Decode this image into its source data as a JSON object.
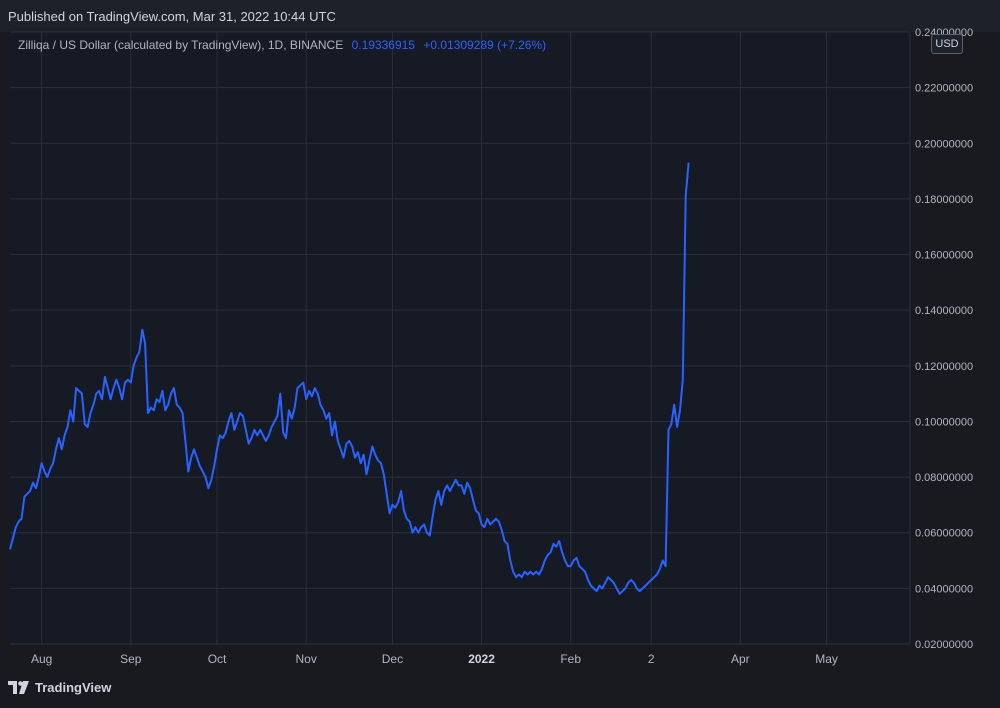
{
  "header": {
    "published": "Published on TradingView.com, Mar 31, 2022 10:44 UTC"
  },
  "legend": {
    "symbol": "Zilliqa / US Dollar (calculated by TradingView), 1D, BINANCE",
    "price": "0.19336915",
    "change": "+0.01309289 (+7.26%)"
  },
  "currency": "USD",
  "footer": {
    "brand": "TradingView"
  },
  "colors": {
    "line": "#2962ff",
    "background": "#161a25",
    "grid": "#2a2e39",
    "text": "#b2b5be"
  },
  "chart_data": {
    "type": "line",
    "title": "Zilliqa / US Dollar (calculated by TradingView), 1D, BINANCE",
    "xlabel": "",
    "ylabel": "",
    "ylim": [
      0.02,
      0.24
    ],
    "xlim": [
      "2021-07-21",
      "2022-05-30"
    ],
    "grid": true,
    "legend": "top-left",
    "y_ticks": [
      "0.24000000",
      "0.22000000",
      "0.20000000",
      "0.18000000",
      "0.16000000",
      "0.14000000",
      "0.12000000",
      "0.10000000",
      "0.08000000",
      "0.06000000",
      "0.04000000",
      "0.02000000"
    ],
    "x_ticks": [
      "Aug",
      "Sep",
      "Oct",
      "Nov",
      "Dec",
      "2022",
      "Feb",
      "2",
      "Apr",
      "May"
    ],
    "x_tick_dates": [
      "2021-08-01",
      "2021-09-01",
      "2021-10-01",
      "2021-11-01",
      "2021-12-01",
      "2022-01-01",
      "2022-02-01",
      "2022-03-01",
      "2022-04-01",
      "2022-05-01"
    ],
    "series": [
      {
        "values": [
          [
            "2021-07-21",
            0.054
          ],
          [
            "2021-07-23",
            0.062
          ],
          [
            "2021-07-24",
            0.064
          ],
          [
            "2021-07-25",
            0.065
          ],
          [
            "2021-07-26",
            0.073
          ],
          [
            "2021-07-27",
            0.074
          ],
          [
            "2021-07-28",
            0.075
          ],
          [
            "2021-07-29",
            0.078
          ],
          [
            "2021-07-30",
            0.076
          ],
          [
            "2021-07-31",
            0.08
          ],
          [
            "2021-08-01",
            0.085
          ],
          [
            "2021-08-02",
            0.082
          ],
          [
            "2021-08-03",
            0.08
          ],
          [
            "2021-08-04",
            0.083
          ],
          [
            "2021-08-05",
            0.085
          ],
          [
            "2021-08-06",
            0.09
          ],
          [
            "2021-08-07",
            0.094
          ],
          [
            "2021-08-08",
            0.09
          ],
          [
            "2021-08-09",
            0.095
          ],
          [
            "2021-08-10",
            0.098
          ],
          [
            "2021-08-11",
            0.104
          ],
          [
            "2021-08-12",
            0.1
          ],
          [
            "2021-08-13",
            0.112
          ],
          [
            "2021-08-14",
            0.111
          ],
          [
            "2021-08-15",
            0.11
          ],
          [
            "2021-08-16",
            0.099
          ],
          [
            "2021-08-17",
            0.098
          ],
          [
            "2021-08-18",
            0.103
          ],
          [
            "2021-08-19",
            0.106
          ],
          [
            "2021-08-20",
            0.11
          ],
          [
            "2021-08-21",
            0.111
          ],
          [
            "2021-08-22",
            0.108
          ],
          [
            "2021-08-23",
            0.116
          ],
          [
            "2021-08-24",
            0.112
          ],
          [
            "2021-08-25",
            0.108
          ],
          [
            "2021-08-26",
            0.112
          ],
          [
            "2021-08-27",
            0.115
          ],
          [
            "2021-08-28",
            0.112
          ],
          [
            "2021-08-29",
            0.108
          ],
          [
            "2021-08-30",
            0.114
          ],
          [
            "2021-08-31",
            0.115
          ],
          [
            "2021-09-01",
            0.114
          ],
          [
            "2021-09-02",
            0.12
          ],
          [
            "2021-09-03",
            0.123
          ],
          [
            "2021-09-04",
            0.125
          ],
          [
            "2021-09-05",
            0.133
          ],
          [
            "2021-09-06",
            0.128
          ],
          [
            "2021-09-07",
            0.103
          ],
          [
            "2021-09-08",
            0.105
          ],
          [
            "2021-09-09",
            0.104
          ],
          [
            "2021-09-10",
            0.108
          ],
          [
            "2021-09-11",
            0.107
          ],
          [
            "2021-09-12",
            0.111
          ],
          [
            "2021-09-13",
            0.104
          ],
          [
            "2021-09-14",
            0.106
          ],
          [
            "2021-09-15",
            0.11
          ],
          [
            "2021-09-16",
            0.112
          ],
          [
            "2021-09-17",
            0.106
          ],
          [
            "2021-09-18",
            0.105
          ],
          [
            "2021-09-19",
            0.103
          ],
          [
            "2021-09-20",
            0.093
          ],
          [
            "2021-09-21",
            0.082
          ],
          [
            "2021-09-22",
            0.087
          ],
          [
            "2021-09-23",
            0.09
          ],
          [
            "2021-09-24",
            0.087
          ],
          [
            "2021-09-25",
            0.084
          ],
          [
            "2021-09-26",
            0.082
          ],
          [
            "2021-09-27",
            0.08
          ],
          [
            "2021-09-28",
            0.076
          ],
          [
            "2021-09-29",
            0.079
          ],
          [
            "2021-09-30",
            0.084
          ],
          [
            "2021-10-01",
            0.09
          ],
          [
            "2021-10-02",
            0.095
          ],
          [
            "2021-10-03",
            0.094
          ],
          [
            "2021-10-04",
            0.096
          ],
          [
            "2021-10-05",
            0.1
          ],
          [
            "2021-10-06",
            0.103
          ],
          [
            "2021-10-07",
            0.097
          ],
          [
            "2021-10-08",
            0.1
          ],
          [
            "2021-10-09",
            0.103
          ],
          [
            "2021-10-10",
            0.102
          ],
          [
            "2021-10-11",
            0.097
          ],
          [
            "2021-10-12",
            0.092
          ],
          [
            "2021-10-13",
            0.094
          ],
          [
            "2021-10-14",
            0.097
          ],
          [
            "2021-10-15",
            0.095
          ],
          [
            "2021-10-16",
            0.097
          ],
          [
            "2021-10-17",
            0.095
          ],
          [
            "2021-10-18",
            0.093
          ],
          [
            "2021-10-19",
            0.095
          ],
          [
            "2021-10-20",
            0.098
          ],
          [
            "2021-10-21",
            0.1
          ],
          [
            "2021-10-22",
            0.102
          ],
          [
            "2021-10-23",
            0.11
          ],
          [
            "2021-10-24",
            0.096
          ],
          [
            "2021-10-25",
            0.094
          ],
          [
            "2021-10-26",
            0.104
          ],
          [
            "2021-10-27",
            0.101
          ],
          [
            "2021-10-28",
            0.105
          ],
          [
            "2021-10-29",
            0.112
          ],
          [
            "2021-10-30",
            0.113
          ],
          [
            "2021-10-31",
            0.114
          ],
          [
            "2021-11-01",
            0.108
          ],
          [
            "2021-11-02",
            0.111
          ],
          [
            "2021-11-03",
            0.109
          ],
          [
            "2021-11-04",
            0.112
          ],
          [
            "2021-11-05",
            0.11
          ],
          [
            "2021-11-06",
            0.106
          ],
          [
            "2021-11-07",
            0.104
          ],
          [
            "2021-11-08",
            0.101
          ],
          [
            "2021-11-09",
            0.103
          ],
          [
            "2021-11-10",
            0.095
          ],
          [
            "2021-11-11",
            0.1
          ],
          [
            "2021-11-12",
            0.093
          ],
          [
            "2021-11-13",
            0.09
          ],
          [
            "2021-11-14",
            0.087
          ],
          [
            "2021-11-15",
            0.092
          ],
          [
            "2021-11-16",
            0.093
          ],
          [
            "2021-11-17",
            0.091
          ],
          [
            "2021-11-18",
            0.087
          ],
          [
            "2021-11-19",
            0.089
          ],
          [
            "2021-11-20",
            0.085
          ],
          [
            "2021-11-21",
            0.088
          ],
          [
            "2021-11-22",
            0.081
          ],
          [
            "2021-11-23",
            0.086
          ],
          [
            "2021-11-24",
            0.091
          ],
          [
            "2021-11-25",
            0.088
          ],
          [
            "2021-11-26",
            0.086
          ],
          [
            "2021-11-27",
            0.085
          ],
          [
            "2021-11-28",
            0.081
          ],
          [
            "2021-11-29",
            0.074
          ],
          [
            "2021-11-30",
            0.067
          ],
          [
            "2021-12-01",
            0.07
          ],
          [
            "2021-12-02",
            0.069
          ],
          [
            "2021-12-03",
            0.071
          ],
          [
            "2021-12-04",
            0.075
          ],
          [
            "2021-12-05",
            0.068
          ],
          [
            "2021-12-06",
            0.065
          ],
          [
            "2021-12-07",
            0.064
          ],
          [
            "2021-12-08",
            0.06
          ],
          [
            "2021-12-09",
            0.062
          ],
          [
            "2021-12-10",
            0.06
          ],
          [
            "2021-12-11",
            0.062
          ],
          [
            "2021-12-12",
            0.063
          ],
          [
            "2021-12-13",
            0.06
          ],
          [
            "2021-12-14",
            0.059
          ],
          [
            "2021-12-15",
            0.066
          ],
          [
            "2021-12-16",
            0.072
          ],
          [
            "2021-12-17",
            0.075
          ],
          [
            "2021-12-18",
            0.07
          ],
          [
            "2021-12-19",
            0.075
          ],
          [
            "2021-12-20",
            0.077
          ],
          [
            "2021-12-21",
            0.075
          ],
          [
            "2021-12-22",
            0.077
          ],
          [
            "2021-12-23",
            0.079
          ],
          [
            "2021-12-24",
            0.077
          ],
          [
            "2021-12-25",
            0.077
          ],
          [
            "2021-12-26",
            0.074
          ],
          [
            "2021-12-27",
            0.078
          ],
          [
            "2021-12-28",
            0.076
          ],
          [
            "2021-12-29",
            0.072
          ],
          [
            "2021-12-30",
            0.068
          ],
          [
            "2021-12-31",
            0.067
          ],
          [
            "2022-01-01",
            0.063
          ],
          [
            "2022-01-02",
            0.062
          ],
          [
            "2022-01-03",
            0.065
          ],
          [
            "2022-01-04",
            0.063
          ],
          [
            "2022-01-05",
            0.064
          ],
          [
            "2022-01-06",
            0.065
          ],
          [
            "2022-01-07",
            0.064
          ],
          [
            "2022-01-08",
            0.061
          ],
          [
            "2022-01-09",
            0.057
          ],
          [
            "2022-01-10",
            0.056
          ],
          [
            "2022-01-11",
            0.05
          ],
          [
            "2022-01-12",
            0.046
          ],
          [
            "2022-01-13",
            0.044
          ],
          [
            "2022-01-14",
            0.045
          ],
          [
            "2022-01-15",
            0.044
          ],
          [
            "2022-01-16",
            0.046
          ],
          [
            "2022-01-17",
            0.045
          ],
          [
            "2022-01-18",
            0.046
          ],
          [
            "2022-01-19",
            0.045
          ],
          [
            "2022-01-20",
            0.046
          ],
          [
            "2022-01-21",
            0.045
          ],
          [
            "2022-01-22",
            0.047
          ],
          [
            "2022-01-23",
            0.05
          ],
          [
            "2022-01-24",
            0.052
          ],
          [
            "2022-01-25",
            0.053
          ],
          [
            "2022-01-26",
            0.056
          ],
          [
            "2022-01-27",
            0.055
          ],
          [
            "2022-01-28",
            0.057
          ],
          [
            "2022-01-29",
            0.053
          ],
          [
            "2022-01-30",
            0.05
          ],
          [
            "2022-01-31",
            0.048
          ],
          [
            "2022-02-01",
            0.048
          ],
          [
            "2022-02-02",
            0.05
          ],
          [
            "2022-02-03",
            0.051
          ],
          [
            "2022-02-04",
            0.048
          ],
          [
            "2022-02-05",
            0.047
          ],
          [
            "2022-02-06",
            0.046
          ],
          [
            "2022-02-07",
            0.043
          ],
          [
            "2022-02-08",
            0.041
          ],
          [
            "2022-02-09",
            0.04
          ],
          [
            "2022-02-10",
            0.039
          ],
          [
            "2022-02-11",
            0.041
          ],
          [
            "2022-02-12",
            0.04
          ],
          [
            "2022-02-13",
            0.042
          ],
          [
            "2022-02-14",
            0.044
          ],
          [
            "2022-02-15",
            0.043
          ],
          [
            "2022-02-16",
            0.042
          ],
          [
            "2022-02-17",
            0.04
          ],
          [
            "2022-02-18",
            0.038
          ],
          [
            "2022-02-19",
            0.039
          ],
          [
            "2022-02-20",
            0.04
          ],
          [
            "2022-02-21",
            0.042
          ],
          [
            "2022-02-22",
            0.043
          ],
          [
            "2022-02-23",
            0.042
          ],
          [
            "2022-02-24",
            0.04
          ],
          [
            "2022-02-25",
            0.039
          ],
          [
            "2022-02-26",
            0.04
          ],
          [
            "2022-02-27",
            0.041
          ],
          [
            "2022-02-28",
            0.042
          ],
          [
            "2022-03-01",
            0.043
          ],
          [
            "2022-03-02",
            0.044
          ],
          [
            "2022-03-03",
            0.045
          ],
          [
            "2022-03-04",
            0.047
          ],
          [
            "2022-03-05",
            0.05
          ],
          [
            "2022-03-06",
            0.048
          ],
          [
            "2022-03-07",
            0.097
          ],
          [
            "2022-03-08",
            0.099
          ],
          [
            "2022-03-09",
            0.106
          ],
          [
            "2022-03-10",
            0.098
          ],
          [
            "2022-03-11",
            0.104
          ],
          [
            "2022-03-12",
            0.115
          ],
          [
            "2022-03-13",
            0.181
          ],
          [
            "2022-03-14",
            0.193
          ]
        ]
      }
    ]
  }
}
